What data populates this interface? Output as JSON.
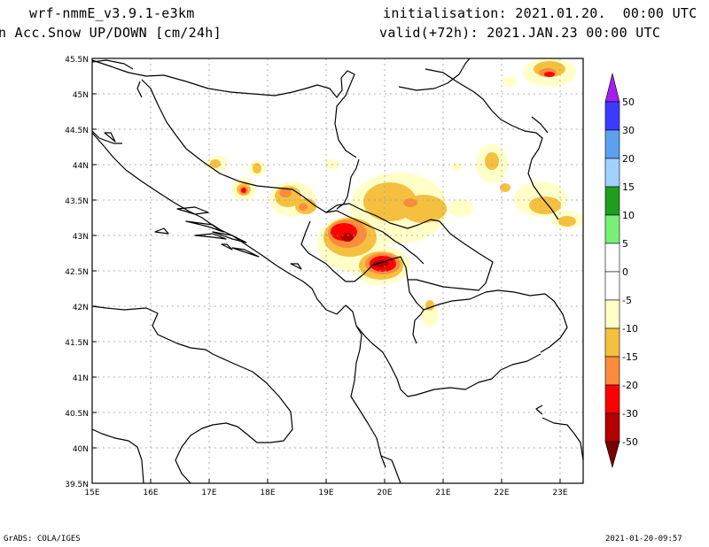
{
  "header": {
    "model": "wrf-nmmE_v3.9.1-e3km",
    "variable": "n Acc.Snow UP/DOWN [cm/24h]",
    "init": "initialisation: 2021.01.20.  00:00 UTC",
    "valid": "valid(+72h): 2021.JAN.23 00:00 UTC"
  },
  "footer": {
    "credit": "GrADS: COLA/IGES",
    "timestamp": "2021-01-20-09:57"
  },
  "map": {
    "lon_labels": [
      "15E",
      "16E",
      "17E",
      "18E",
      "19E",
      "20E",
      "21E",
      "22E",
      "23E"
    ],
    "lat_labels": [
      "45.5N",
      "45N",
      "44.5N",
      "44N",
      "43.5N",
      "43N",
      "42.5N",
      "42N",
      "41.5N",
      "41N",
      "40.5N",
      "40N",
      "39.5N"
    ]
  },
  "colorbar": {
    "labels": [
      "50",
      "30",
      "20",
      "15",
      "10",
      "5",
      "0",
      "-5",
      "-10",
      "-15",
      "-20",
      "-30",
      "-50"
    ],
    "colors": {
      "top_arrow": "#a020f0",
      "50_30": "#3c3cff",
      "30_20": "#5ca0f0",
      "20_15": "#a0d2ff",
      "15_10": "#1e9e1e",
      "10_5": "#78f078",
      "5_0": "#ffffff",
      "0_m5": "#ffffff",
      "m5_m10": "#ffffc8",
      "m10_m15": "#f5c040",
      "m15_m20": "#fa8c3c",
      "m20_m30": "#ff0000",
      "m30_m50": "#b40000",
      "bottom_arrow": "#780000"
    }
  }
}
